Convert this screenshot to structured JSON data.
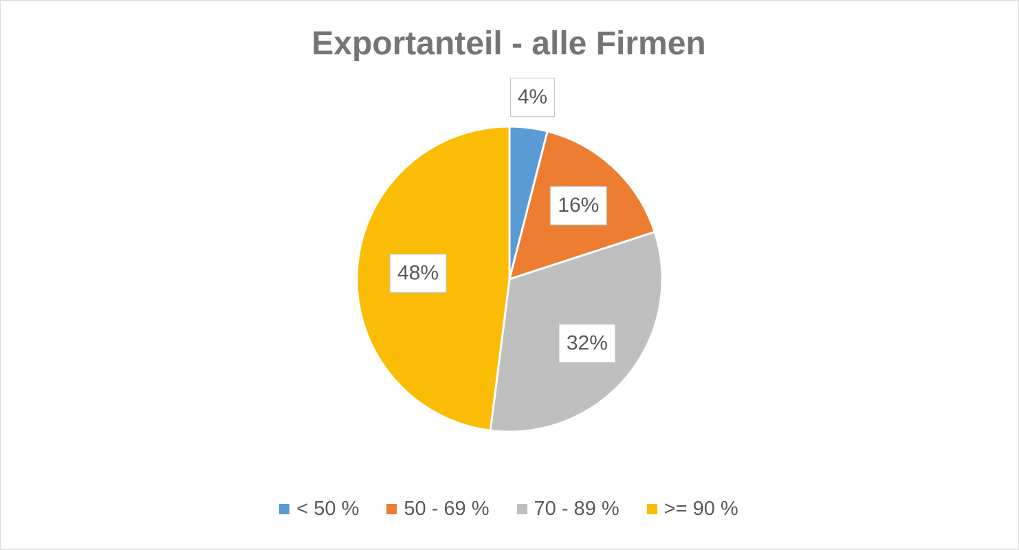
{
  "chart_data": {
    "type": "pie",
    "title": "Exportanteil - alle Firmen",
    "categories": [
      "< 50 %",
      "50 - 69 %",
      "70 - 89 %",
      ">= 90 %"
    ],
    "values": [
      4,
      16,
      32,
      48
    ],
    "data_labels": [
      "4%",
      "16%",
      "32%",
      "48%"
    ],
    "colors": [
      "#5b9bd5",
      "#ed7d31",
      "#bfbfbf",
      "#fbbc05"
    ],
    "legend_position": "bottom",
    "start_angle": "12 o'clock",
    "direction": "clockwise"
  }
}
